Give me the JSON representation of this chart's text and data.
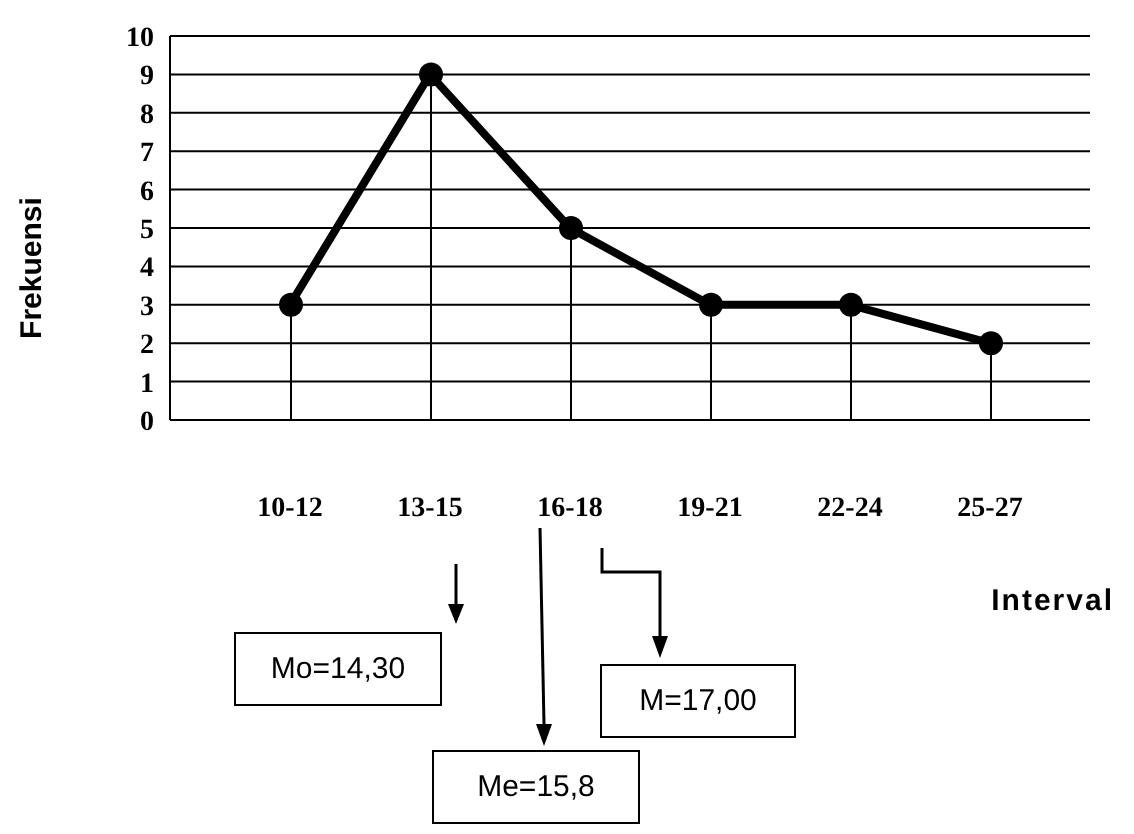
{
  "chart_data": {
    "type": "line",
    "xlabel": "Interval",
    "ylabel": "Frekuensi",
    "categories": [
      "10-12",
      "13-15",
      "16-18",
      "19-21",
      "22-24",
      "25-27"
    ],
    "series": [
      {
        "color": "#000000",
        "marker": "none",
        "values": [
          3,
          9,
          5,
          3,
          3,
          2
        ]
      },
      {
        "type": "lollipop",
        "color": "#000000",
        "marker": "circle",
        "values": [
          3,
          9,
          5,
          3,
          3,
          2
        ]
      }
    ],
    "line_style": "solid",
    "ylim": [
      0,
      10
    ],
    "yticks": [
      0,
      1,
      2,
      3,
      4,
      5,
      6,
      7,
      8,
      9,
      10
    ],
    "grid": "y",
    "legend": false,
    "annotations": [
      "Mo=14,30",
      "M=17,00",
      "Me=15,8"
    ]
  }
}
